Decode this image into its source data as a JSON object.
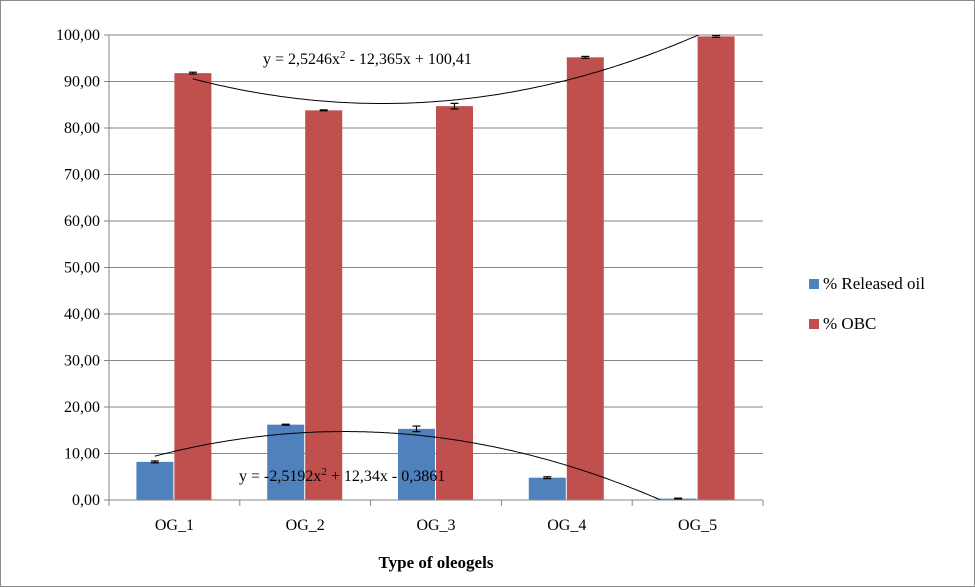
{
  "chart_data": {
    "type": "bar",
    "title": "",
    "xlabel": "Type of oleogels",
    "ylabel": "",
    "categories": [
      "OG_1",
      "OG_2",
      "OG_3",
      "OG_4",
      "OG_5"
    ],
    "ylim": [
      0,
      100
    ],
    "yticks": [
      0,
      10,
      20,
      30,
      40,
      50,
      60,
      70,
      80,
      90,
      100
    ],
    "ytick_labels": [
      "0,00",
      "10,00",
      "20,00",
      "30,00",
      "40,00",
      "50,00",
      "60,00",
      "70,00",
      "80,00",
      "90,00",
      "100,00"
    ],
    "grid": true,
    "legend_position": "right",
    "series": [
      {
        "name": "% Released oil",
        "color": "#4f81bd",
        "values": [
          8.2,
          16.2,
          15.3,
          4.8,
          0.3
        ],
        "errors": [
          0.2,
          0.1,
          0.6,
          0.2,
          0.1
        ]
      },
      {
        "name": "% OBC",
        "color": "#c0504d",
        "values": [
          91.8,
          83.8,
          84.7,
          95.2,
          99.7
        ],
        "errors": [
          0.2,
          0.1,
          0.6,
          0.2,
          0.2
        ]
      }
    ],
    "trendlines": [
      {
        "series": "% OBC",
        "type": "polynomial",
        "coefficients": [
          2.5246,
          -12.365,
          100.41
        ],
        "equation": "y = 2,5246x² - 12,365x + 100,41"
      },
      {
        "series": "% Released oil",
        "type": "polynomial",
        "coefficients": [
          -2.5192,
          12.34,
          -0.3861
        ],
        "equation": "y = -2,5192x² + 12,34x - 0,3861"
      }
    ]
  }
}
